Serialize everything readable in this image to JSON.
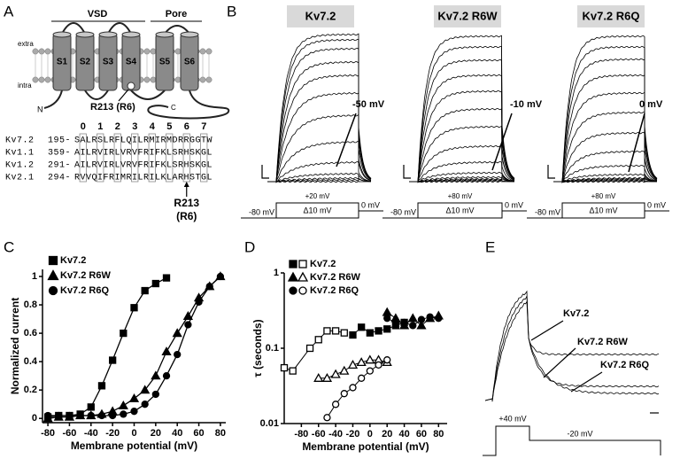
{
  "panel_labels": [
    "A",
    "B",
    "C",
    "D",
    "E"
  ],
  "panel_a": {
    "domains": [
      "VSD",
      "Pore"
    ],
    "segments": [
      "S1",
      "S2",
      "S3",
      "S4",
      "S5",
      "S6"
    ],
    "extra": "extra",
    "intra": "intra",
    "n_term": "N",
    "c_term": "C",
    "mutation": "R213 (R6)",
    "positions": [
      0,
      1,
      2,
      3,
      4,
      5,
      6,
      7
    ],
    "alignment": [
      {
        "channel": "Kv7.2",
        "start": "195-",
        "sequence": "SALRSLRFLQILRMIRMDRRGGTW"
      },
      {
        "channel": "Kv1.1",
        "start": "359-",
        "sequence": "AILRVIRLVRVFRIFKLSRHSKGL"
      },
      {
        "channel": "Kv1.2",
        "start": "291-",
        "sequence": "AILRVIRLVRVFRIFKLSRHSKGL"
      },
      {
        "channel": "Kv2.1",
        "start": "294-",
        "sequence": "RVVQIFRIMRILRILKLARHSTGL"
      }
    ],
    "arrow_label": [
      "R213",
      "(R6)"
    ]
  },
  "panel_b": {
    "titles": [
      "Kv7.2",
      "Kv7.2 R6W",
      "Kv7.2 R6Q"
    ],
    "threshold_labels": [
      "-50 mV",
      "-10 mV",
      "0 mV"
    ],
    "protocols": [
      {
        "step": "+20 mV",
        "holding": "-80 mV",
        "increment": "Δ10 mV",
        "tail": "0 mV"
      },
      {
        "step": "+80 mV",
        "holding": "-80 mV",
        "increment": "Δ10 mV",
        "tail": "0 mV"
      },
      {
        "step": "+80 mV",
        "holding": "-80 mV",
        "increment": "Δ10 mV",
        "tail": "0 mV"
      }
    ]
  },
  "panel_e": {
    "traces": [
      "Kv7.2",
      "Kv7.2 R6W",
      "Kv7.2 R6Q"
    ],
    "step": "+40 mV",
    "tail": "-20 mV"
  },
  "chart_data": [
    {
      "type": "scatter",
      "xlabel": "Membrane potential (mV)",
      "ylabel": "Normalized current",
      "xlim": [
        -85,
        85
      ],
      "ylim": [
        -0.03,
        1.05
      ],
      "xticks": [
        -80,
        -60,
        -40,
        -20,
        0,
        20,
        40,
        60,
        80
      ],
      "yticks": [
        0,
        0.2,
        0.4,
        0.6,
        0.8,
        1
      ],
      "legend": "top-left",
      "series": [
        {
          "name": "Kv7.2",
          "marker": "square",
          "color": "#000000",
          "x": [
            -80,
            -70,
            -60,
            -50,
            -40,
            -30,
            -20,
            -10,
            0,
            10,
            20,
            30
          ],
          "values": [
            0.01,
            0.02,
            0.02,
            0.03,
            0.08,
            0.23,
            0.41,
            0.6,
            0.78,
            0.9,
            0.95,
            0.99
          ]
        },
        {
          "name": "Kv7.2 R6W",
          "marker": "triangle",
          "color": "#000000",
          "x": [
            -80,
            -70,
            -60,
            -50,
            -40,
            -30,
            -20,
            -10,
            0,
            10,
            20,
            30,
            40,
            50,
            60,
            70,
            80
          ],
          "values": [
            0,
            0.01,
            0.01,
            0.02,
            0.02,
            0.03,
            0.05,
            0.09,
            0.14,
            0.2,
            0.3,
            0.47,
            0.6,
            0.72,
            0.85,
            0.93,
            1
          ]
        },
        {
          "name": "Kv7.2 R6Q",
          "marker": "circle",
          "color": "#000000",
          "x": [
            -80,
            -70,
            -60,
            -50,
            -40,
            -30,
            -20,
            -10,
            0,
            10,
            20,
            30,
            40,
            50,
            60,
            70,
            80
          ],
          "values": [
            0.02,
            0.02,
            0.02,
            0.02,
            0.02,
            0.02,
            0.02,
            0.03,
            0.05,
            0.1,
            0.17,
            0.3,
            0.45,
            0.66,
            0.82,
            0.93,
            1
          ]
        }
      ]
    },
    {
      "type": "scatter",
      "xlabel": "Membrane potential (mV)",
      "ylabel": "τ (seconds)",
      "xlim": [
        -100,
        90
      ],
      "ylim": [
        0.01,
        1
      ],
      "yscale": "log",
      "xticks": [
        -80,
        -60,
        -40,
        -20,
        0,
        20,
        40,
        60,
        80
      ],
      "yticks": [
        0.01,
        0.1,
        1
      ],
      "legend": "top-left",
      "series": [
        {
          "name": "Kv7.2",
          "marker": "square",
          "color": "#000000",
          "activation": {
            "x": [
              -20,
              -10,
              0,
              10,
              20,
              30,
              40
            ],
            "values": [
              0.15,
              0.19,
              0.16,
              0.17,
              0.18,
              0.2,
              0.22
            ]
          },
          "deactivation": {
            "x": [
              -100,
              -90,
              -70,
              -60,
              -50,
              -40,
              -30
            ],
            "values": [
              0.055,
              0.05,
              0.1,
              0.13,
              0.17,
              0.17,
              0.16
            ]
          }
        },
        {
          "name": "Kv7.2 R6W",
          "marker": "triangle",
          "color": "#000000",
          "activation": {
            "x": [
              20,
              30,
              40,
              50,
              60,
              70,
              80
            ],
            "values": [
              0.3,
              0.25,
              0.2,
              0.25,
              0.2,
              0.25,
              0.27
            ]
          },
          "deactivation": {
            "x": [
              -60,
              -50,
              -40,
              -30,
              -20,
              -10,
              0,
              10,
              20
            ],
            "values": [
              0.04,
              0.04,
              0.045,
              0.05,
              0.06,
              0.065,
              0.07,
              0.07,
              0.065
            ]
          }
        },
        {
          "name": "Kv7.2 R6Q",
          "marker": "circle",
          "color": "#000000",
          "activation": {
            "x": [
              20,
              30,
              40,
              50,
              60,
              70,
              80
            ],
            "values": [
              0.25,
              0.22,
              0.22,
              0.2,
              0.24,
              0.26,
              0.25
            ]
          },
          "deactivation": {
            "x": [
              -50,
              -40,
              -30,
              -20,
              -10,
              0,
              10,
              20
            ],
            "values": [
              0.012,
              0.018,
              0.025,
              0.03,
              0.04,
              0.05,
              0.06,
              0.07
            ]
          }
        }
      ]
    }
  ]
}
